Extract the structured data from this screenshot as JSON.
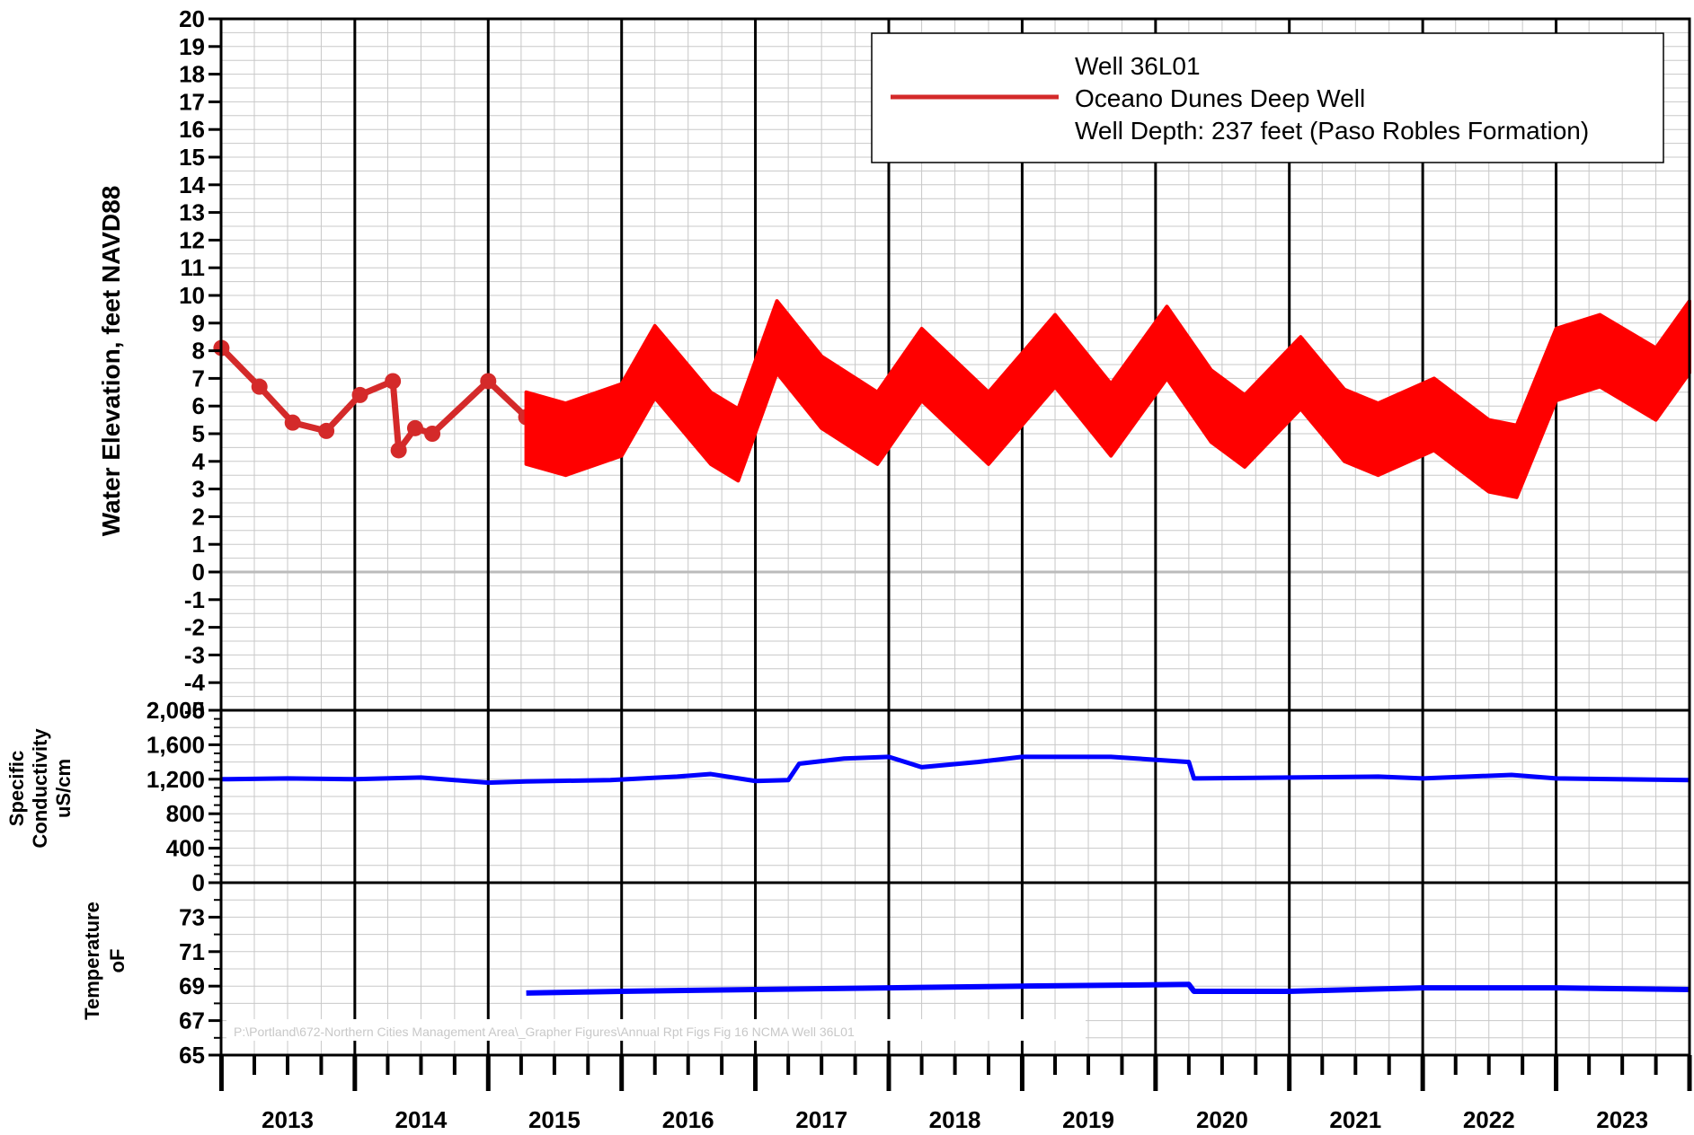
{
  "chart_data": [
    {
      "type": "line",
      "panel": "water-elevation",
      "ylabel": "Water Elevation, feet NAVD88",
      "ylim": [
        -5,
        20
      ],
      "yticks": [
        "20",
        "19",
        "18",
        "17",
        "16",
        "15",
        "14",
        "13",
        "12",
        "11",
        "10",
        "9",
        "8",
        "7",
        "6",
        "5",
        "4",
        "3",
        "2",
        "1",
        "0",
        "-1",
        "-2",
        "-3",
        "-4",
        "-5"
      ],
      "grid": true,
      "legend": {
        "placement": "top-right",
        "lines": [
          "Well 36L01",
          "Oceano Dunes Deep Well",
          "Well Depth: 237 feet (Paso Robles Formation)"
        ]
      },
      "series": [
        {
          "color": "#d42a2a",
          "x": [
            "2013-01-01",
            "2013-04-15",
            "2013-07-15",
            "2013-10-15",
            "2014-01-15",
            "2014-04-15",
            "2014-05-01",
            "2014-06-15",
            "2014-08-01",
            "2015-01-01",
            "2015-04-15"
          ],
          "y": [
            8.1,
            6.7,
            5.4,
            5.1,
            6.4,
            6.9,
            4.4,
            5.2,
            5.0,
            6.9,
            5.6
          ]
        },
        {
          "color": "#ff0000",
          "x": [
            "2015-04-15",
            "2015-08-01",
            "2016-01-01",
            "2016-04-01",
            "2016-09-01",
            "2016-11-15",
            "2017-03-01",
            "2017-07-01",
            "2017-12-01",
            "2018-04-01",
            "2018-10-01",
            "2019-04-01",
            "2019-09-01",
            "2020-02-01",
            "2020-06-01",
            "2020-09-01",
            "2021-02-01",
            "2021-06-01",
            "2021-09-01",
            "2022-02-01",
            "2022-07-01",
            "2022-09-15",
            "2023-01-01",
            "2023-05-01",
            "2023-10-01",
            "2024-01-01"
          ],
          "y": [
            5.2,
            4.8,
            5.5,
            7.6,
            5.2,
            4.6,
            8.5,
            6.5,
            5.2,
            7.5,
            5.2,
            8.0,
            5.5,
            8.3,
            6.0,
            5.1,
            7.2,
            5.3,
            4.8,
            5.7,
            4.2,
            4.0,
            7.5,
            8.0,
            6.8,
            8.5
          ],
          "band": 1.3
        }
      ]
    },
    {
      "type": "line",
      "panel": "specific-conductivity",
      "ylabel": "Specific Conductivity uS/cm",
      "ylabel_lines": [
        "Specific",
        "Conductivity",
        "uS/cm"
      ],
      "ylim": [
        0,
        2000
      ],
      "yticks": [
        "2,000",
        "1,600",
        "1,200",
        "800",
        "400",
        "0"
      ],
      "series": [
        {
          "color": "#0000ff",
          "x": [
            "2013-01-01",
            "2013-07-01",
            "2014-01-01",
            "2014-07-01",
            "2015-01-01",
            "2015-04-15",
            "2015-12-01",
            "2016-06-01",
            "2016-09-01",
            "2017-01-01",
            "2017-04-01",
            "2017-05-01",
            "2017-09-01",
            "2018-01-01",
            "2018-04-01",
            "2018-09-01",
            "2019-01-01",
            "2019-09-01",
            "2020-04-01",
            "2020-04-15",
            "2021-01-01",
            "2021-09-01",
            "2022-01-01",
            "2022-09-01",
            "2023-01-01",
            "2024-01-01"
          ],
          "y": [
            1200,
            1210,
            1200,
            1220,
            1160,
            1175,
            1190,
            1230,
            1260,
            1180,
            1190,
            1380,
            1440,
            1460,
            1340,
            1400,
            1460,
            1460,
            1400,
            1210,
            1220,
            1230,
            1210,
            1250,
            1210,
            1190
          ]
        }
      ]
    },
    {
      "type": "line",
      "panel": "temperature",
      "ylabel": "Temperature oF",
      "ylabel_lines": [
        "Temperature",
        "oF"
      ],
      "ylim": [
        65,
        75
      ],
      "yticks": [
        "73",
        "71",
        "69",
        "67",
        "65"
      ],
      "series": [
        {
          "color": "#0000ff",
          "x": [
            "2015-04-15",
            "2016-01-01",
            "2017-01-01",
            "2018-01-01",
            "2019-01-01",
            "2020-04-01",
            "2020-04-15",
            "2021-01-01",
            "2022-01-01",
            "2023-01-01",
            "2024-01-01"
          ],
          "y": [
            68.6,
            68.7,
            68.8,
            68.9,
            69.0,
            69.1,
            68.7,
            68.7,
            68.9,
            68.9,
            68.8
          ]
        }
      ]
    }
  ],
  "x_axis": {
    "range": [
      "2012-12-31",
      "2024-01-01"
    ],
    "year_labels": [
      "2013",
      "2014",
      "2015",
      "2016",
      "2017",
      "2018",
      "2019",
      "2020",
      "2021",
      "2022",
      "2023"
    ]
  },
  "file_path": "P:\\Portland\\672-Northern Cities Management Area\\_Grapher Figures\\Annual Rpt Figs Fig 16 NCMA Well 36L01",
  "colors": {
    "frame": "#000000",
    "grid": "#c8c8c8",
    "zero_line": "#bbbbbb",
    "legend_line": "#d42a2a"
  }
}
